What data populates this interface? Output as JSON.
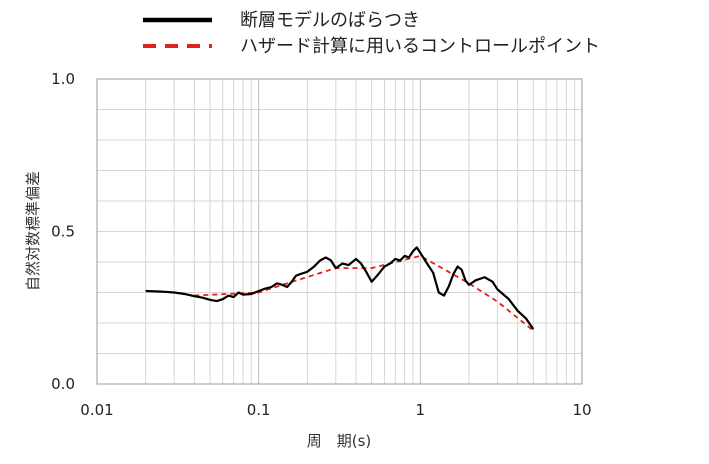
{
  "chart_data": {
    "type": "line",
    "x_scale": "log",
    "y_scale": "linear",
    "xlim": [
      0.01,
      10
    ],
    "ylim": [
      0,
      1.0
    ],
    "grid": true,
    "legend_position": "top",
    "xlabel": "周　期(s)",
    "ylabel": "自然対数標準偏差",
    "x_tick_labels": [
      "0.01",
      "0.1",
      "1",
      "10"
    ],
    "y_tick_labels": [
      "0.0",
      "0.5",
      "1.0"
    ],
    "series": [
      {
        "name": "断層モデルのばらつき",
        "color": "#000000",
        "style": "solid",
        "points": [
          [
            0.02,
            0.305
          ],
          [
            0.025,
            0.303
          ],
          [
            0.03,
            0.3
          ],
          [
            0.035,
            0.295
          ],
          [
            0.04,
            0.288
          ],
          [
            0.045,
            0.283
          ],
          [
            0.05,
            0.276
          ],
          [
            0.055,
            0.272
          ],
          [
            0.06,
            0.278
          ],
          [
            0.065,
            0.29
          ],
          [
            0.07,
            0.285
          ],
          [
            0.075,
            0.3
          ],
          [
            0.08,
            0.293
          ],
          [
            0.09,
            0.295
          ],
          [
            0.1,
            0.305
          ],
          [
            0.11,
            0.313
          ],
          [
            0.12,
            0.318
          ],
          [
            0.13,
            0.33
          ],
          [
            0.14,
            0.325
          ],
          [
            0.15,
            0.318
          ],
          [
            0.16,
            0.335
          ],
          [
            0.17,
            0.355
          ],
          [
            0.18,
            0.36
          ],
          [
            0.2,
            0.368
          ],
          [
            0.22,
            0.385
          ],
          [
            0.24,
            0.405
          ],
          [
            0.26,
            0.415
          ],
          [
            0.28,
            0.405
          ],
          [
            0.3,
            0.38
          ],
          [
            0.33,
            0.395
          ],
          [
            0.36,
            0.39
          ],
          [
            0.4,
            0.41
          ],
          [
            0.43,
            0.395
          ],
          [
            0.46,
            0.37
          ],
          [
            0.5,
            0.335
          ],
          [
            0.55,
            0.36
          ],
          [
            0.6,
            0.385
          ],
          [
            0.65,
            0.395
          ],
          [
            0.7,
            0.41
          ],
          [
            0.75,
            0.405
          ],
          [
            0.8,
            0.42
          ],
          [
            0.85,
            0.415
          ],
          [
            0.9,
            0.435
          ],
          [
            0.95,
            0.448
          ],
          [
            1.0,
            0.43
          ],
          [
            1.1,
            0.395
          ],
          [
            1.2,
            0.365
          ],
          [
            1.3,
            0.3
          ],
          [
            1.4,
            0.29
          ],
          [
            1.5,
            0.32
          ],
          [
            1.6,
            0.36
          ],
          [
            1.7,
            0.385
          ],
          [
            1.8,
            0.375
          ],
          [
            1.9,
            0.34
          ],
          [
            2.0,
            0.325
          ],
          [
            2.2,
            0.34
          ],
          [
            2.5,
            0.35
          ],
          [
            2.8,
            0.335
          ],
          [
            3.0,
            0.31
          ],
          [
            3.5,
            0.28
          ],
          [
            4.0,
            0.24
          ],
          [
            4.5,
            0.215
          ],
          [
            5.0,
            0.18
          ]
        ]
      },
      {
        "name": "ハザード計算に用いるコントロールポイント",
        "color": "#e0201b",
        "style": "dashed",
        "points": [
          [
            0.04,
            0.29
          ],
          [
            0.1,
            0.3
          ],
          [
            0.15,
            0.33
          ],
          [
            0.3,
            0.38
          ],
          [
            0.5,
            0.38
          ],
          [
            1.0,
            0.42
          ],
          [
            2.0,
            0.33
          ],
          [
            3.0,
            0.27
          ],
          [
            5.0,
            0.175
          ]
        ]
      }
    ]
  }
}
